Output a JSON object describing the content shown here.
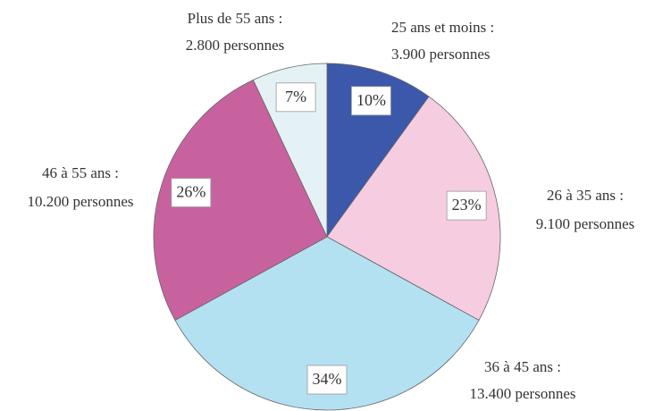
{
  "chart_data": {
    "type": "pie",
    "categories": [
      "25 ans et moins :",
      "26 à 35 ans :",
      "36 à 45 ans :",
      "46 à 55 ans :",
      "Plus de 55 ans :"
    ],
    "sublabels": [
      "3.900 personnes",
      "9.100 personnes",
      "13.400 personnes",
      "10.200 personnes",
      "2.800 personnes"
    ],
    "values": [
      10,
      23,
      34,
      26,
      7
    ],
    "value_labels": [
      "10%",
      "23%",
      "34%",
      "26%",
      "7%"
    ],
    "colors": [
      "#3c58aa",
      "#f6cde0",
      "#b4e1f1",
      "#c8629f",
      "#e5f2f5"
    ]
  }
}
